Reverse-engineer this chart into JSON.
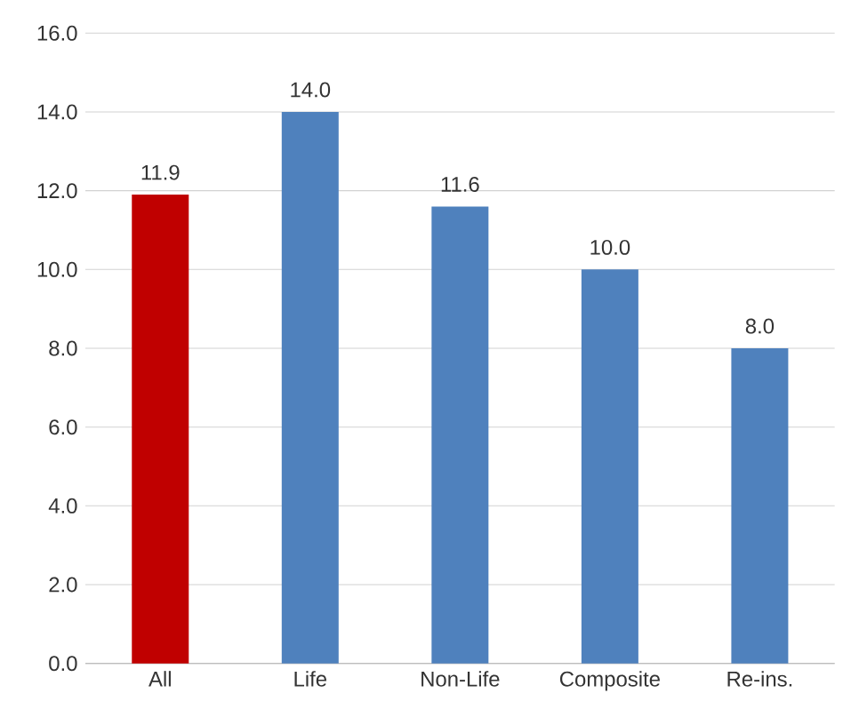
{
  "chart_data": {
    "type": "bar",
    "categories": [
      "All",
      "Life",
      "Non-Life",
      "Composite",
      "Re-ins."
    ],
    "values": [
      11.9,
      14.0,
      11.6,
      10.0,
      8.0
    ],
    "colors": [
      "#c00000",
      "#4f81bd",
      "#4f81bd",
      "#4f81bd",
      "#4f81bd"
    ],
    "value_labels": [
      "11.9",
      "14.0",
      "11.6",
      "10.0",
      "8.0"
    ],
    "ylim": [
      0,
      16
    ],
    "yticks": [
      {
        "value": 0,
        "label": "0.0"
      },
      {
        "value": 2,
        "label": "2.0"
      },
      {
        "value": 4,
        "label": "4.0"
      },
      {
        "value": 6,
        "label": "6.0"
      },
      {
        "value": 8,
        "label": "8.0"
      },
      {
        "value": 10,
        "label": "10.0"
      },
      {
        "value": 12,
        "label": "12.0"
      },
      {
        "value": 14,
        "label": "14.0"
      },
      {
        "value": 16,
        "label": "16.0"
      }
    ],
    "grid": "y"
  }
}
